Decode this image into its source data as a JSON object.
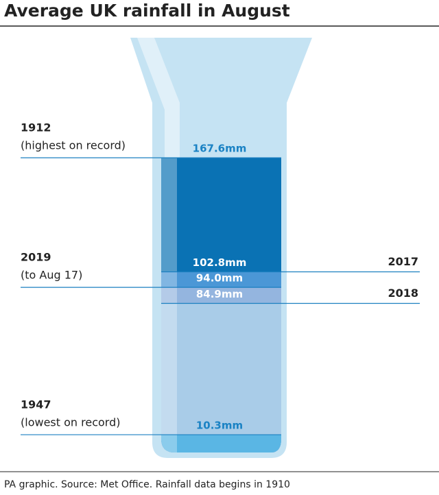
{
  "chart_data": {
    "type": "gauge",
    "title": "Average UK rainfall in August",
    "source": "PA graphic. Source: Met Office. Rainfall data begins in 1910",
    "categories": [
      "1912",
      "2017",
      "2019",
      "2018",
      "1947"
    ],
    "notes": [
      "(highest on record)",
      null,
      "(to Aug 17)",
      null,
      "(lowest on record)"
    ],
    "values": [
      167.6,
      102.8,
      94.0,
      84.9,
      10.3
    ],
    "value_labels": [
      "167.6mm",
      "102.8mm",
      "94.0mm",
      "84.9mm",
      "10.3mm"
    ],
    "colors": [
      "#0a72b4",
      "#4b97d6",
      "#94b5df",
      "#a9cce8",
      "#5ab6e4"
    ]
  }
}
